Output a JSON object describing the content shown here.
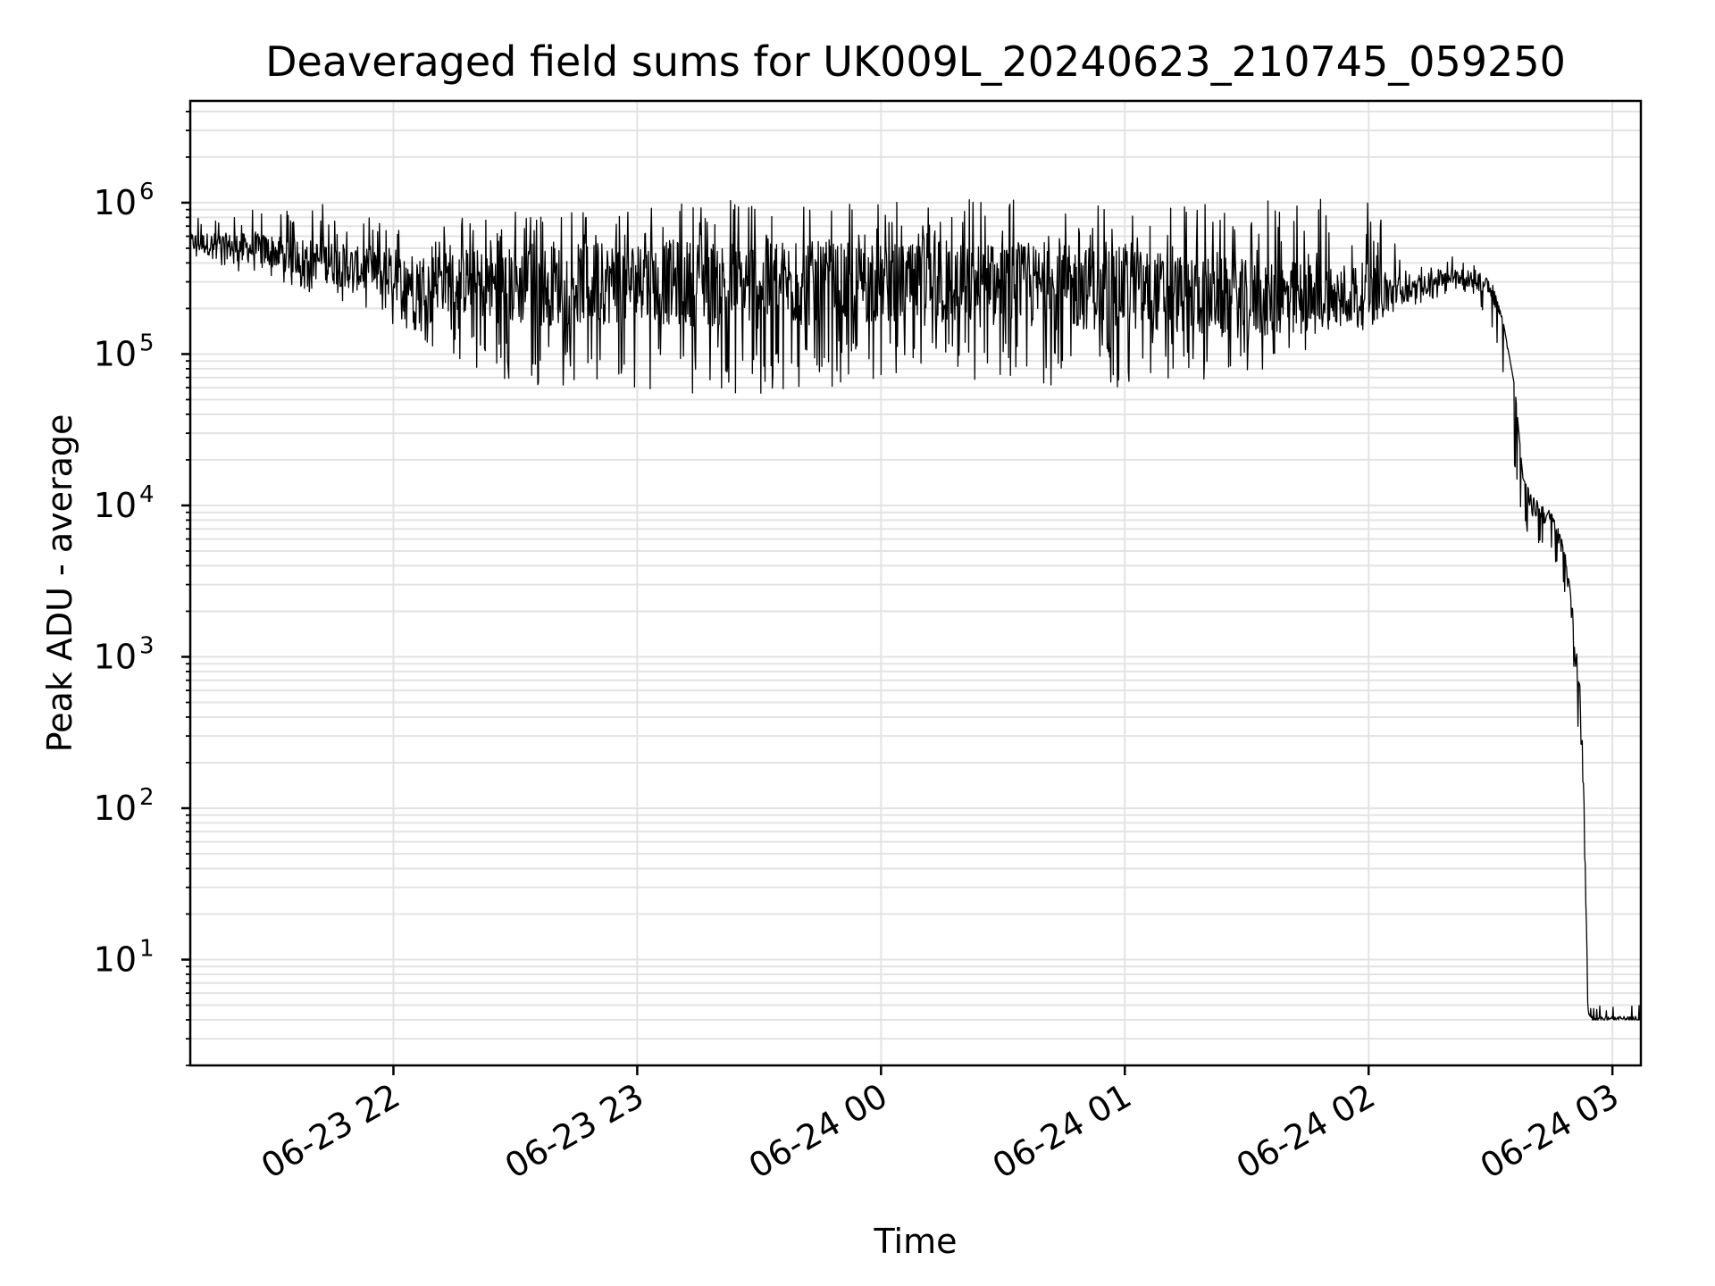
{
  "chart_data": {
    "type": "line",
    "title": "Deaveraged field sums for UK009L_20240623_210745_059250",
    "xlabel": "Time",
    "ylabel": "Peak ADU - average",
    "yscale": "log",
    "grid": "major and minor",
    "xlim": [
      "2024-06-23 21:10",
      "2024-06-24 03:07"
    ],
    "ylim": [
      2,
      4700000
    ],
    "x_ticks": [
      {
        "t": "2024-06-23 22:00",
        "label": "06-23 22"
      },
      {
        "t": "2024-06-23 23:00",
        "label": "06-23 23"
      },
      {
        "t": "2024-06-24 00:00",
        "label": "06-24 00"
      },
      {
        "t": "2024-06-24 01:00",
        "label": "06-24 01"
      },
      {
        "t": "2024-06-24 02:00",
        "label": "06-24 02"
      },
      {
        "t": "2024-06-24 03:00",
        "label": "06-24 03"
      }
    ],
    "y_ticks": [
      {
        "value": 10,
        "base": "10",
        "exp": "1"
      },
      {
        "value": 100,
        "base": "10",
        "exp": "2"
      },
      {
        "value": 1000,
        "base": "10",
        "exp": "3"
      },
      {
        "value": 10000,
        "base": "10",
        "exp": "4"
      },
      {
        "value": 100000,
        "base": "10",
        "exp": "5"
      },
      {
        "value": 1000000,
        "base": "10",
        "exp": "6"
      }
    ],
    "series": [
      {
        "color": "#000000",
        "x": [
          "2024-06-23 21:10",
          "2024-06-23 21:30",
          "2024-06-23 21:45",
          "2024-06-23 22:00",
          "2024-06-23 22:30",
          "2024-06-23 23:00",
          "2024-06-23 23:30",
          "2024-06-24 00:00",
          "2024-06-24 00:30",
          "2024-06-24 01:00",
          "2024-06-24 01:30",
          "2024-06-24 02:00",
          "2024-06-24 02:10",
          "2024-06-24 02:20",
          "2024-06-24 02:25",
          "2024-06-24 02:30",
          "2024-06-24 02:33",
          "2024-06-24 02:36",
          "2024-06-24 02:38",
          "2024-06-24 02:40",
          "2024-06-24 02:45",
          "2024-06-24 02:48",
          "2024-06-24 02:50",
          "2024-06-24 02:52",
          "2024-06-24 02:53",
          "2024-06-24 02:54",
          "2024-06-24 02:55",
          "2024-06-24 03:00",
          "2024-06-24 03:07"
        ],
        "y": [
          550000,
          480000,
          400000,
          320000,
          280000,
          300000,
          290000,
          290000,
          280000,
          270000,
          230000,
          250000,
          260000,
          330000,
          310000,
          290000,
          170000,
          90000,
          20000,
          10000,
          8000,
          5000,
          2000,
          500,
          100,
          5,
          4,
          4,
          4
        ],
        "min_envelope": [
          420000,
          300000,
          230000,
          150000,
          60000,
          60000,
          50000,
          70000,
          60000,
          60000,
          70000,
          150000,
          200000,
          250000,
          240000,
          150000,
          80000,
          15000,
          7000,
          6000,
          5000,
          3000,
          1200,
          200,
          50,
          4,
          4,
          4,
          4
        ],
        "max_envelope": [
          800000,
          950000,
          1000000,
          700000,
          900000,
          1000000,
          1100000,
          1000000,
          1100000,
          1000000,
          1000000,
          1200000,
          400000,
          450000,
          400000,
          320000,
          170000,
          60000,
          15000,
          12000,
          9000,
          6000,
          2500,
          700,
          200,
          6,
          5,
          5,
          5
        ]
      }
    ]
  }
}
